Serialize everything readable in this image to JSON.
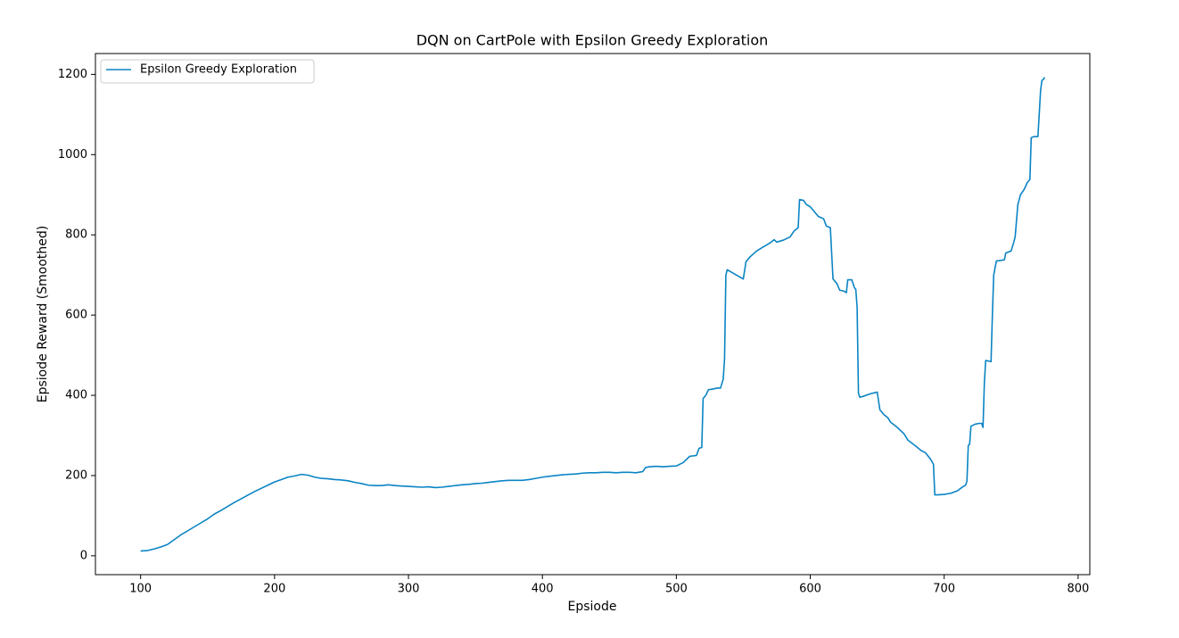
{
  "chart_data": {
    "type": "line",
    "title": "DQN on CartPole with Epsilon Greedy Exploration",
    "xlabel": "Epsiode",
    "ylabel": "Epsiode Reward (Smoothed)",
    "xlim": [
      66.25,
      808.75
    ],
    "ylim": [
      -47,
      1252
    ],
    "xticks": [
      100,
      200,
      300,
      400,
      500,
      600,
      700,
      800
    ],
    "yticks": [
      0,
      200,
      400,
      600,
      800,
      1000,
      1200
    ],
    "grid": false,
    "legend": "upper left",
    "x": [
      100,
      105,
      110,
      115,
      120,
      125,
      130,
      135,
      140,
      145,
      150,
      155,
      160,
      165,
      170,
      175,
      180,
      185,
      190,
      195,
      200,
      205,
      210,
      215,
      220,
      225,
      230,
      235,
      240,
      245,
      250,
      255,
      260,
      265,
      270,
      275,
      280,
      285,
      290,
      295,
      300,
      305,
      310,
      315,
      320,
      325,
      330,
      335,
      340,
      345,
      350,
      355,
      360,
      365,
      370,
      375,
      380,
      385,
      390,
      395,
      400,
      405,
      410,
      415,
      420,
      425,
      430,
      435,
      440,
      445,
      450,
      455,
      460,
      465,
      470,
      475,
      477,
      480,
      485,
      490,
      495,
      500,
      505,
      510,
      515,
      517,
      519,
      520,
      522,
      524,
      528,
      530,
      533,
      535,
      536,
      537,
      538,
      550,
      552,
      555,
      560,
      565,
      570,
      573,
      575,
      580,
      585,
      588,
      591,
      592,
      595,
      597,
      600,
      603,
      606,
      610,
      612,
      615,
      617,
      620,
      622,
      625,
      627,
      628,
      631,
      633,
      634,
      635,
      636,
      637,
      640,
      645,
      650,
      652,
      655,
      658,
      660,
      665,
      670,
      673,
      677,
      680,
      683,
      686,
      690,
      692,
      693,
      695,
      700,
      705,
      710,
      713,
      716,
      717,
      718,
      719,
      720,
      723,
      726,
      728,
      729,
      730,
      731,
      735,
      736,
      737,
      739,
      742,
      745,
      746,
      750,
      752,
      753,
      755,
      757,
      760,
      762,
      764,
      765,
      767,
      770,
      772,
      773,
      774,
      775
    ],
    "series": [
      {
        "name": "Epsilon Greedy Exploration",
        "color": "#0b84c4",
        "values": [
          12,
          13,
          17,
          22,
          28,
          40,
          52,
          62,
          72,
          82,
          92,
          104,
          113,
          123,
          133,
          142,
          151,
          160,
          168,
          176,
          184,
          190,
          196,
          199,
          203,
          201,
          196,
          193,
          192,
          190,
          189,
          187,
          183,
          180,
          176,
          175,
          175,
          177,
          175,
          174,
          173,
          172,
          171,
          172,
          170,
          171,
          173,
          175,
          177,
          178,
          180,
          181,
          183,
          185,
          187,
          188,
          188,
          188,
          190,
          193,
          196,
          198,
          200,
          202,
          203,
          204,
          206,
          207,
          207,
          208,
          208,
          207,
          208,
          208,
          207,
          210,
          220,
          222,
          223,
          222,
          223,
          224,
          232,
          248,
          250,
          268,
          270,
          392,
          400,
          414,
          416,
          418,
          418,
          440,
          490,
          700,
          713,
          690,
          733,
          745,
          760,
          770,
          780,
          788,
          782,
          787,
          795,
          810,
          818,
          888,
          886,
          876,
          870,
          858,
          846,
          840,
          822,
          818,
          690,
          678,
          662,
          660,
          656,
          688,
          688,
          668,
          664,
          620,
          405,
          395,
          398,
          404,
          408,
          364,
          352,
          344,
          333,
          320,
          304,
          288,
          278,
          270,
          262,
          257,
          240,
          228,
          152,
          152,
          153,
          156,
          162,
          170,
          176,
          186,
          275,
          278,
          323,
          328,
          330,
          330,
          320,
          430,
          487,
          484,
          600,
          700,
          735,
          736,
          738,
          755,
          760,
          782,
          795,
          875,
          900,
          915,
          930,
          938,
          1042,
          1045,
          1045,
          1160,
          1185,
          1187,
          1193
        ]
      }
    ]
  }
}
